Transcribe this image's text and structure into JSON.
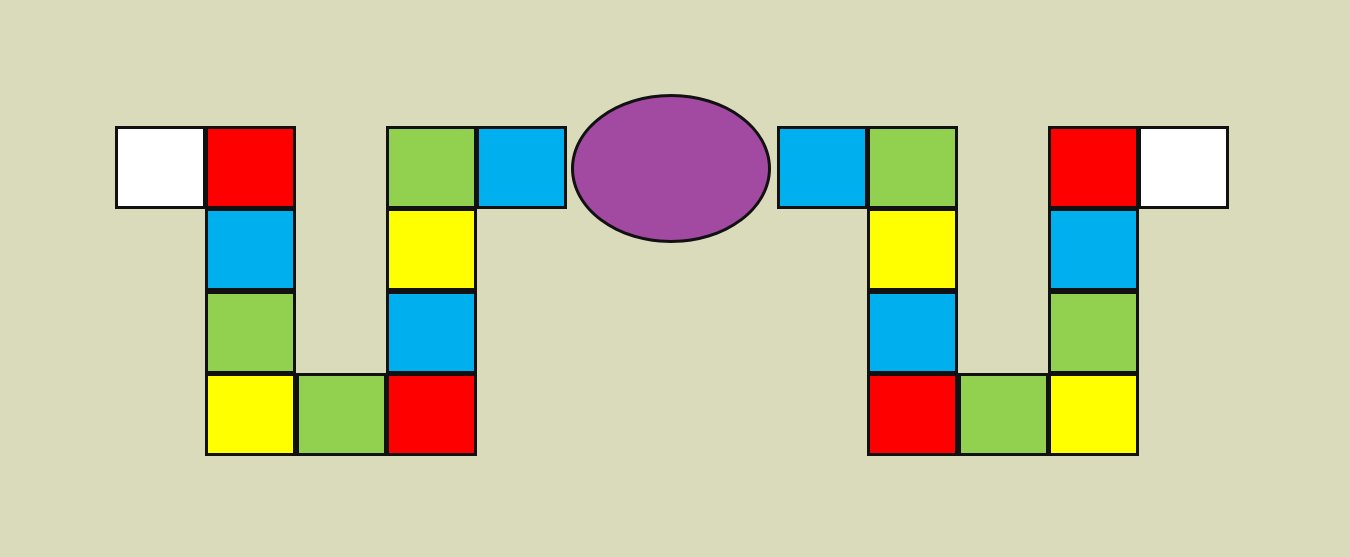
{
  "colors": {
    "background": "#d9dbbb",
    "white": "#ffffff",
    "red": "#ff0000",
    "blue": "#00b0ee",
    "green": "#92d050",
    "yellow": "#ffff00",
    "purple": "#a24aa2"
  },
  "center": {
    "shape": "oval",
    "color": "purple"
  },
  "paths": [
    {
      "side": "left",
      "tiles": [
        "white",
        "red",
        "blue",
        "green",
        "yellow",
        "green",
        "red",
        "blue",
        "yellow",
        "green",
        "blue"
      ]
    },
    {
      "side": "right",
      "tiles": [
        "blue",
        "green",
        "yellow",
        "blue",
        "red",
        "green",
        "yellow",
        "green",
        "blue",
        "red",
        "white"
      ]
    }
  ]
}
